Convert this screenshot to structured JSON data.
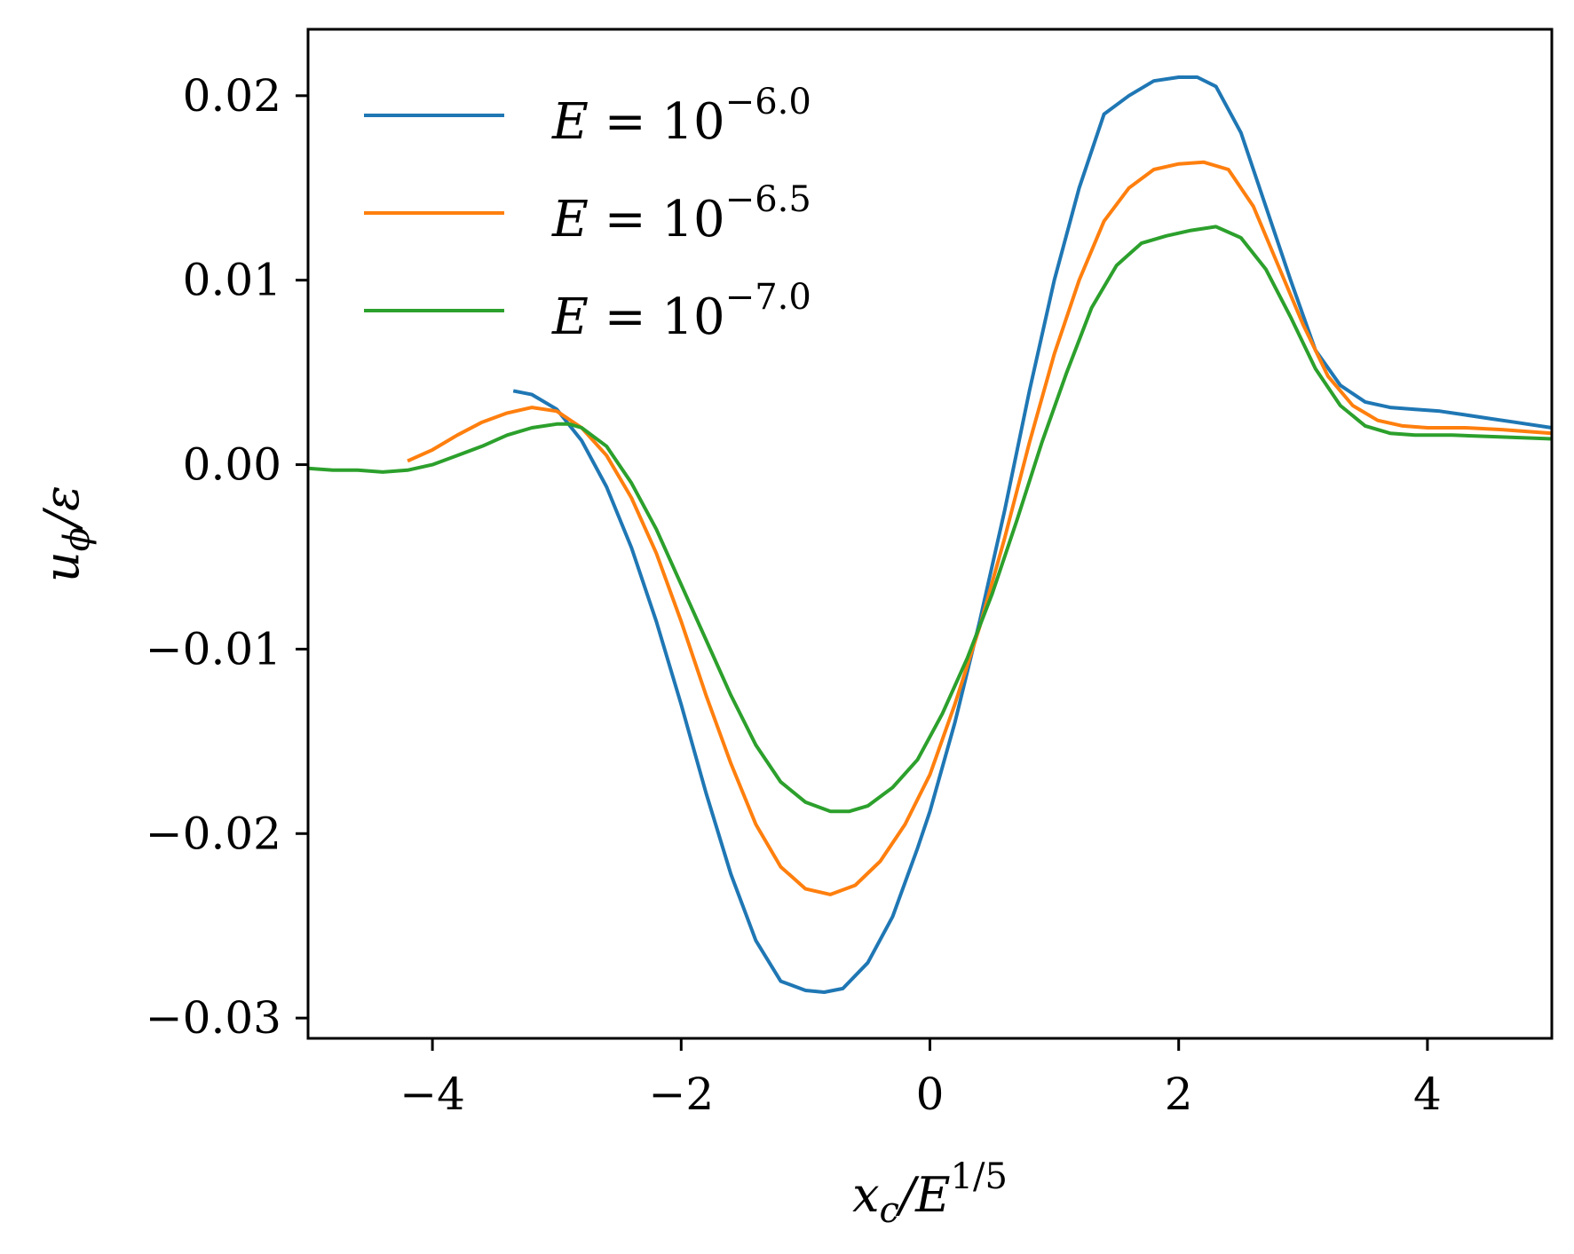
{
  "chart_data": {
    "type": "line",
    "xlabel": "x_c/E^{1/5}",
    "xlabel_parts": {
      "main": "x",
      "sub": "c",
      "mid": "/E",
      "sup": "1/5"
    },
    "ylabel": "u_φ/ε",
    "ylabel_parts": {
      "main": "u",
      "sub": "ϕ",
      "rest": "/ε"
    },
    "xlim": [
      -5,
      5
    ],
    "ylim": [
      -0.0311,
      0.0236
    ],
    "xticks": [
      -4,
      -2,
      0,
      2,
      4
    ],
    "xtick_labels": [
      "−4",
      "−2",
      "0",
      "2",
      "4"
    ],
    "yticks": [
      0.02,
      0.01,
      0.0,
      -0.01,
      -0.02,
      -0.03
    ],
    "ytick_labels": [
      "0.02",
      "0.01",
      "0.00",
      "−0.01",
      "−0.02",
      "−0.03"
    ],
    "grid": false,
    "legend_position": "top-left",
    "series": [
      {
        "name": "E = 10^−6.0",
        "name_parts": {
          "base": "E = 10",
          "exp": "−6.0"
        },
        "color": "#1f77b4",
        "x": [
          -3.35,
          -3.2,
          -3.0,
          -2.8,
          -2.6,
          -2.4,
          -2.2,
          -2.0,
          -1.8,
          -1.6,
          -1.4,
          -1.2,
          -1.0,
          -0.85,
          -0.7,
          -0.5,
          -0.3,
          -0.1,
          0.0,
          0.2,
          0.4,
          0.6,
          0.8,
          1.0,
          1.2,
          1.4,
          1.6,
          1.8,
          2.0,
          2.15,
          2.3,
          2.5,
          2.7,
          2.9,
          3.1,
          3.3,
          3.5,
          3.7,
          3.9,
          4.1,
          4.3,
          4.5,
          4.7,
          5.0
        ],
        "y": [
          0.004,
          0.0038,
          0.003,
          0.0013,
          -0.0012,
          -0.0045,
          -0.0085,
          -0.013,
          -0.0178,
          -0.0222,
          -0.0258,
          -0.028,
          -0.0285,
          -0.0286,
          -0.0284,
          -0.027,
          -0.0245,
          -0.0208,
          -0.0188,
          -0.014,
          -0.0085,
          -0.0025,
          0.004,
          0.01,
          0.015,
          0.019,
          0.02,
          0.0208,
          0.021,
          0.021,
          0.0205,
          0.018,
          0.014,
          0.01,
          0.0062,
          0.0043,
          0.0034,
          0.0031,
          0.003,
          0.0029,
          0.0027,
          0.0025,
          0.0023,
          0.002
        ]
      },
      {
        "name": "E = 10^−6.5",
        "name_parts": {
          "base": "E = 10",
          "exp": "−6.5"
        },
        "color": "#ff7f0e",
        "x": [
          -4.2,
          -4.0,
          -3.8,
          -3.6,
          -3.4,
          -3.2,
          -3.0,
          -2.8,
          -2.6,
          -2.4,
          -2.2,
          -2.0,
          -1.8,
          -1.6,
          -1.4,
          -1.2,
          -1.0,
          -0.8,
          -0.6,
          -0.4,
          -0.2,
          0.0,
          0.2,
          0.4,
          0.6,
          0.8,
          1.0,
          1.2,
          1.4,
          1.6,
          1.8,
          2.0,
          2.2,
          2.4,
          2.6,
          2.8,
          3.0,
          3.2,
          3.4,
          3.6,
          3.8,
          4.0,
          4.3,
          4.6,
          5.0
        ],
        "y": [
          0.0002,
          0.0008,
          0.0016,
          0.0023,
          0.0028,
          0.0031,
          0.0029,
          0.002,
          0.0005,
          -0.0018,
          -0.0048,
          -0.0085,
          -0.0125,
          -0.0162,
          -0.0195,
          -0.0218,
          -0.023,
          -0.0233,
          -0.0228,
          -0.0215,
          -0.0195,
          -0.0168,
          -0.013,
          -0.0088,
          -0.004,
          0.0012,
          0.006,
          0.01,
          0.0132,
          0.015,
          0.016,
          0.0163,
          0.0164,
          0.016,
          0.014,
          0.0108,
          0.0076,
          0.0048,
          0.0032,
          0.0024,
          0.0021,
          0.002,
          0.002,
          0.0019,
          0.0017
        ]
      },
      {
        "name": "E = 10^−7.0",
        "name_parts": {
          "base": "E = 10",
          "exp": "−7.0"
        },
        "color": "#2ca02c",
        "x": [
          -5.0,
          -4.8,
          -4.6,
          -4.4,
          -4.2,
          -4.0,
          -3.8,
          -3.6,
          -3.4,
          -3.2,
          -3.0,
          -2.9,
          -2.8,
          -2.6,
          -2.4,
          -2.2,
          -2.0,
          -1.8,
          -1.6,
          -1.4,
          -1.2,
          -1.0,
          -0.8,
          -0.65,
          -0.5,
          -0.3,
          -0.1,
          0.1,
          0.3,
          0.5,
          0.7,
          0.9,
          1.1,
          1.3,
          1.5,
          1.7,
          1.9,
          2.1,
          2.3,
          2.5,
          2.7,
          2.9,
          3.1,
          3.3,
          3.5,
          3.7,
          3.9,
          4.2,
          4.6,
          5.0
        ],
        "y": [
          -0.0002,
          -0.0003,
          -0.0003,
          -0.0004,
          -0.0003,
          0.0,
          0.0005,
          0.001,
          0.0016,
          0.002,
          0.0022,
          0.0022,
          0.002,
          0.001,
          -0.001,
          -0.0035,
          -0.0065,
          -0.0095,
          -0.0125,
          -0.0152,
          -0.0172,
          -0.0183,
          -0.0188,
          -0.0188,
          -0.0185,
          -0.0175,
          -0.016,
          -0.0135,
          -0.0105,
          -0.007,
          -0.003,
          0.0012,
          0.005,
          0.0085,
          0.0108,
          0.012,
          0.0124,
          0.0127,
          0.0129,
          0.0123,
          0.0106,
          0.008,
          0.0052,
          0.0032,
          0.0021,
          0.0017,
          0.0016,
          0.0016,
          0.0015,
          0.0014
        ]
      }
    ]
  }
}
